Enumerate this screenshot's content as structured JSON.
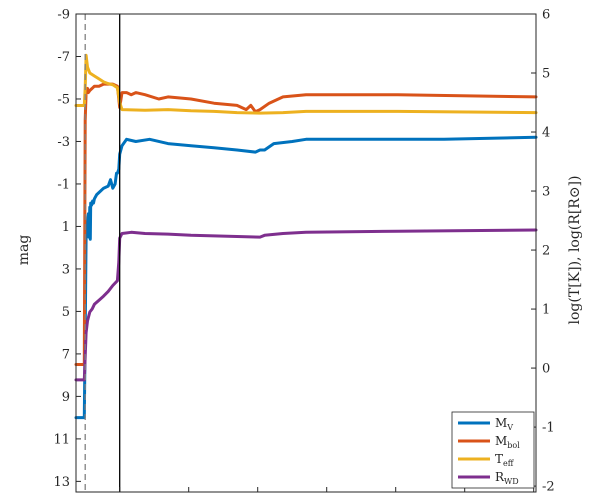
{
  "chart_data": {
    "type": "line",
    "title": "",
    "xlabel": "",
    "ylabel_left": "mag",
    "ylabel_right": "log(T[K]), log(R[R⊙])",
    "ylim_left": [
      13.5,
      -9
    ],
    "ylim_right": [
      -2.1,
      6
    ],
    "yticks_left": [
      -9,
      -7,
      -5,
      -3,
      -1,
      1,
      3,
      5,
      7,
      9,
      11,
      13
    ],
    "yticks_right": [
      6,
      5,
      4,
      3,
      2,
      1,
      0,
      -1,
      -2
    ],
    "xlim": [
      0,
      1
    ],
    "vlines": [
      {
        "x": 0.02,
        "style": "dashed",
        "color": "#808080"
      },
      {
        "x": 0.095,
        "style": "solid",
        "color": "#000000"
      }
    ],
    "legend": {
      "position": "bottom-right",
      "entries": [
        {
          "main": "M",
          "sub": "V",
          "color": "#0072BD"
        },
        {
          "main": "M",
          "sub": "bol",
          "color": "#D95319"
        },
        {
          "main": "T",
          "sub": "eff",
          "color": "#EDB120"
        },
        {
          "main": "R",
          "sub": "WD",
          "color": "#7E2F8E"
        }
      ]
    },
    "series": [
      {
        "name": "MV",
        "axis": "left",
        "color": "#0072BD",
        "x": [
          0,
          0.018,
          0.02,
          0.022,
          0.024,
          0.027,
          0.028,
          0.03,
          0.031,
          0.032,
          0.034,
          0.036,
          0.038,
          0.04,
          0.045,
          0.05,
          0.06,
          0.07,
          0.075,
          0.08,
          0.085,
          0.088,
          0.09,
          0.093,
          0.095,
          0.1,
          0.11,
          0.13,
          0.16,
          0.2,
          0.25,
          0.3,
          0.35,
          0.39,
          0.4,
          0.41,
          0.43,
          0.47,
          0.5,
          0.6,
          0.8,
          1.0
        ],
        "y": [
          10.0,
          10.0,
          6.0,
          1.5,
          1.0,
          0.4,
          1.5,
          0.1,
          1.6,
          -0.1,
          0.0,
          -0.2,
          -0.1,
          -0.3,
          -0.5,
          -0.6,
          -0.8,
          -0.9,
          -1.2,
          -0.8,
          -1.0,
          -1.5,
          -1.5,
          -1.7,
          -2.4,
          -2.8,
          -3.1,
          -3.0,
          -3.1,
          -2.9,
          -2.8,
          -2.7,
          -2.6,
          -2.5,
          -2.6,
          -2.6,
          -2.9,
          -3.0,
          -3.1,
          -3.1,
          -3.1,
          -3.2
        ]
      },
      {
        "name": "Mbol",
        "axis": "left",
        "color": "#D95319",
        "x": [
          0,
          0.018,
          0.02,
          0.022,
          0.025,
          0.027,
          0.03,
          0.035,
          0.04,
          0.05,
          0.06,
          0.07,
          0.08,
          0.09,
          0.093,
          0.095,
          0.1,
          0.11,
          0.12,
          0.13,
          0.15,
          0.18,
          0.2,
          0.25,
          0.3,
          0.35,
          0.37,
          0.38,
          0.39,
          0.4,
          0.42,
          0.45,
          0.5,
          0.7,
          1.0
        ],
        "y": [
          7.5,
          7.5,
          -4.0,
          -5.3,
          -5.5,
          -5.3,
          -5.4,
          -5.5,
          -5.6,
          -5.6,
          -5.7,
          -5.7,
          -5.7,
          -5.6,
          -5.0,
          -4.6,
          -5.3,
          -5.3,
          -5.2,
          -5.3,
          -5.2,
          -5.0,
          -5.1,
          -5.0,
          -4.8,
          -4.7,
          -4.5,
          -4.7,
          -4.4,
          -4.5,
          -4.8,
          -5.1,
          -5.2,
          -5.2,
          -5.1
        ]
      },
      {
        "name": "Teff",
        "axis": "right",
        "color": "#EDB120",
        "x": [
          0,
          0.018,
          0.02,
          0.022,
          0.025,
          0.03,
          0.04,
          0.05,
          0.06,
          0.07,
          0.08,
          0.09,
          0.095,
          0.1,
          0.15,
          0.2,
          0.25,
          0.3,
          0.35,
          0.4,
          0.45,
          0.5,
          0.7,
          1.0
        ],
        "y": [
          4.45,
          4.45,
          4.75,
          5.3,
          5.1,
          5.0,
          4.95,
          4.9,
          4.85,
          4.82,
          4.8,
          4.75,
          4.5,
          4.38,
          4.37,
          4.38,
          4.36,
          4.35,
          4.33,
          4.32,
          4.33,
          4.35,
          4.35,
          4.33
        ]
      },
      {
        "name": "RWD",
        "axis": "right",
        "color": "#7E2F8E",
        "x": [
          0,
          0.018,
          0.02,
          0.022,
          0.025,
          0.03,
          0.035,
          0.04,
          0.05,
          0.06,
          0.07,
          0.08,
          0.09,
          0.093,
          0.095,
          0.1,
          0.12,
          0.15,
          0.2,
          0.25,
          0.3,
          0.35,
          0.4,
          0.41,
          0.45,
          0.5,
          0.7,
          1.0
        ],
        "y": [
          -0.2,
          -0.2,
          0.2,
          0.6,
          0.8,
          0.95,
          1.0,
          1.08,
          1.15,
          1.22,
          1.3,
          1.4,
          1.48,
          1.8,
          2.2,
          2.28,
          2.3,
          2.28,
          2.27,
          2.25,
          2.24,
          2.23,
          2.22,
          2.25,
          2.28,
          2.3,
          2.32,
          2.34
        ]
      }
    ]
  }
}
